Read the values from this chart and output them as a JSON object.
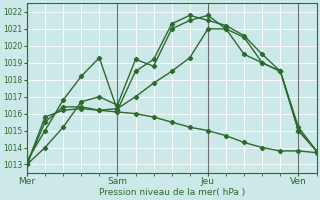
{
  "xlabel": "Pression niveau de la mer( hPa )",
  "bg_color": "#cce8e8",
  "grid_color": "#ffffff",
  "line_color": "#2d6a2d",
  "marker": "D",
  "markersize": 2.2,
  "linewidth": 1.0,
  "ylim": [
    1012.5,
    1022.5
  ],
  "yticks": [
    1013,
    1014,
    1015,
    1016,
    1017,
    1018,
    1019,
    1020,
    1021,
    1022
  ],
  "xtick_labels": [
    "Mer",
    "Sam",
    "Jeu",
    "Ven"
  ],
  "xtick_positions": [
    0,
    30,
    60,
    90
  ],
  "xlim": [
    0,
    96
  ],
  "vline_positions": [
    0,
    30,
    60,
    90
  ],
  "vline_color": "#707070",
  "series": [
    {
      "x": [
        0,
        6,
        12,
        18,
        24,
        30,
        36,
        42,
        48,
        54,
        60,
        66,
        72,
        78,
        84,
        90,
        96
      ],
      "y": [
        1013.0,
        1014.0,
        1015.2,
        1016.7,
        1017.0,
        1016.5,
        1019.2,
        1018.8,
        1021.0,
        1021.5,
        1021.8,
        1021.0,
        1020.5,
        1019.0,
        1018.5,
        1015.0,
        1013.8
      ]
    },
    {
      "x": [
        0,
        6,
        12,
        18,
        24,
        30,
        36,
        42,
        48,
        54,
        60,
        66,
        72,
        78,
        84,
        90,
        96
      ],
      "y": [
        1013.2,
        1015.0,
        1016.8,
        1018.2,
        1019.3,
        1016.2,
        1018.5,
        1019.2,
        1021.3,
        1021.8,
        1021.5,
        1021.2,
        1020.6,
        1019.5,
        1018.5,
        1015.2,
        1013.8
      ]
    },
    {
      "x": [
        0,
        6,
        12,
        18,
        24,
        30,
        36,
        42,
        48,
        54,
        60,
        66,
        72,
        78,
        84,
        90,
        96
      ],
      "y": [
        1013.0,
        1015.5,
        1016.4,
        1016.4,
        1016.2,
        1016.3,
        1017.0,
        1017.8,
        1018.5,
        1019.3,
        1021.0,
        1021.0,
        1019.5,
        1019.0,
        1018.5,
        1015.0,
        1013.8
      ]
    },
    {
      "x": [
        0,
        6,
        12,
        18,
        24,
        30,
        36,
        42,
        48,
        54,
        60,
        66,
        72,
        78,
        84,
        90,
        96
      ],
      "y": [
        1013.0,
        1015.8,
        1016.2,
        1016.3,
        1016.2,
        1016.1,
        1016.0,
        1015.8,
        1015.5,
        1015.2,
        1015.0,
        1014.7,
        1014.3,
        1014.0,
        1013.8,
        1013.8,
        1013.7
      ]
    }
  ]
}
